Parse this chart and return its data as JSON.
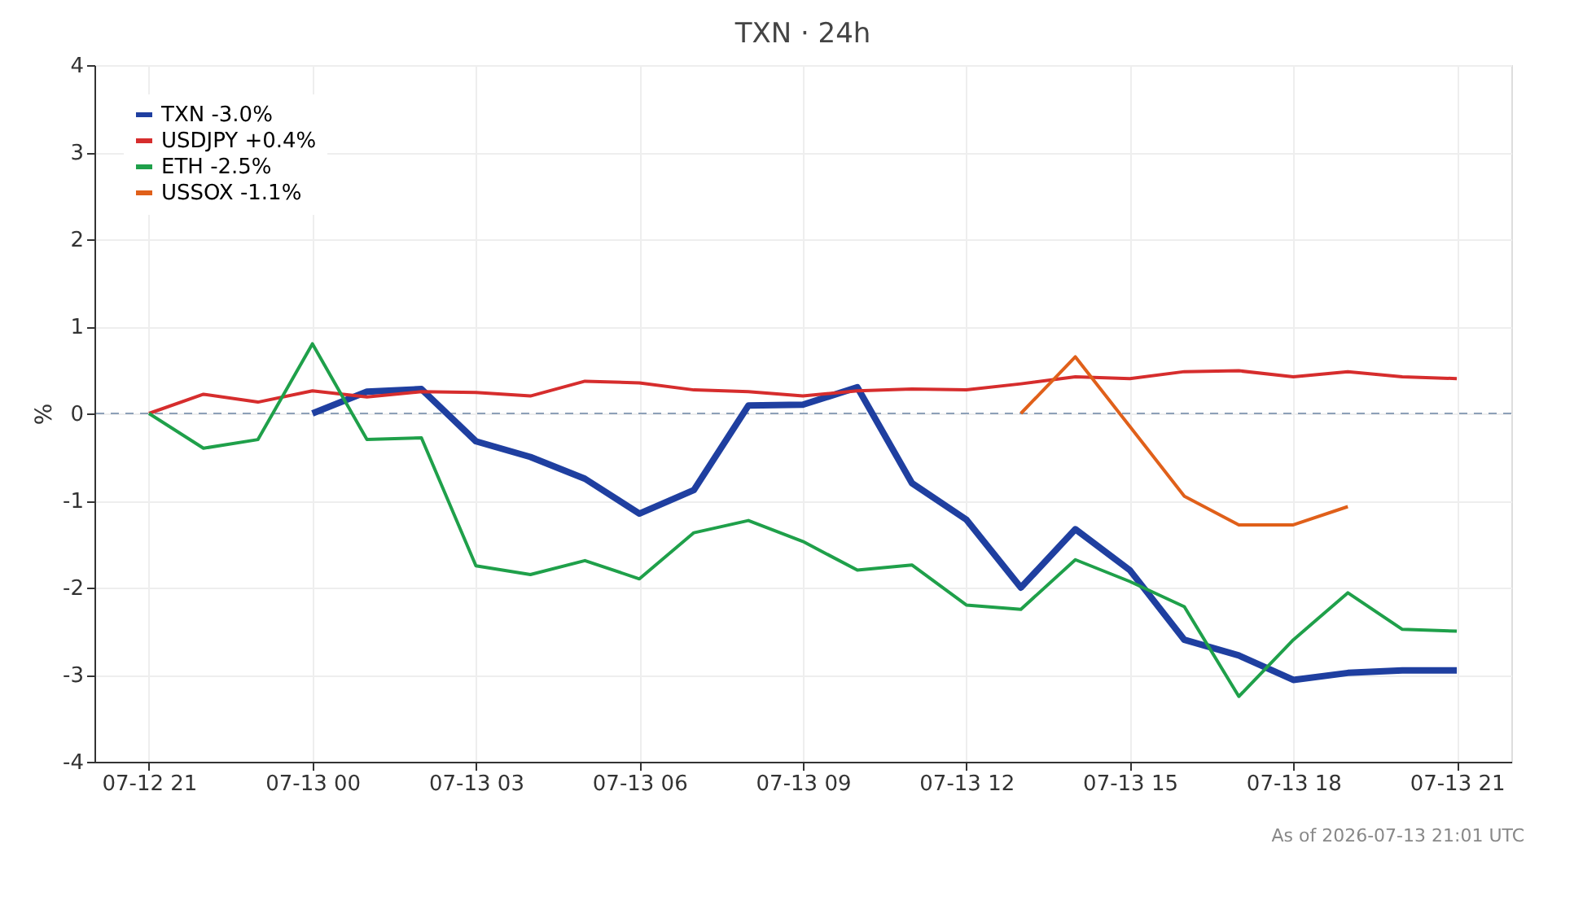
{
  "chart_data": {
    "type": "line",
    "title": "TXN · 24h",
    "ylabel": "%",
    "legend": "top left",
    "grid": true,
    "marker": "none",
    "line_style": "solid",
    "ylim": [
      -4,
      4
    ],
    "yticks": [
      -4,
      -3,
      -2,
      -1,
      0,
      1,
      2,
      3,
      4
    ],
    "xlim": [
      "2026-07-12T20:00",
      "2026-07-13T22:00"
    ],
    "xticks": [
      {
        "value": "2026-07-12T21:00",
        "label": "07-12 21"
      },
      {
        "value": "2026-07-13T00:00",
        "label": "07-13 00"
      },
      {
        "value": "2026-07-13T03:00",
        "label": "07-13 03"
      },
      {
        "value": "2026-07-13T06:00",
        "label": "07-13 06"
      },
      {
        "value": "2026-07-13T09:00",
        "label": "07-13 09"
      },
      {
        "value": "2026-07-13T12:00",
        "label": "07-13 12"
      },
      {
        "value": "2026-07-13T15:00",
        "label": "07-13 15"
      },
      {
        "value": "2026-07-13T18:00",
        "label": "07-13 18"
      },
      {
        "value": "2026-07-13T21:00",
        "label": "07-13 21"
      }
    ],
    "x": [
      "2026-07-12T21:00",
      "2026-07-12T22:00",
      "2026-07-12T23:00",
      "2026-07-13T00:00",
      "2026-07-13T01:00",
      "2026-07-13T02:00",
      "2026-07-13T03:00",
      "2026-07-13T04:00",
      "2026-07-13T05:00",
      "2026-07-13T06:00",
      "2026-07-13T07:00",
      "2026-07-13T08:00",
      "2026-07-13T09:00",
      "2026-07-13T10:00",
      "2026-07-13T11:00",
      "2026-07-13T12:00",
      "2026-07-13T13:00",
      "2026-07-13T14:00",
      "2026-07-13T15:00",
      "2026-07-13T16:00",
      "2026-07-13T17:00",
      "2026-07-13T18:00",
      "2026-07-13T19:00",
      "2026-07-13T20:00",
      "2026-07-13T21:00"
    ],
    "series": [
      {
        "name": "TXN -3.0%",
        "color": "#1f3fa0",
        "values": [
          null,
          null,
          null,
          0,
          0.25,
          0.28,
          -0.32,
          -0.5,
          -0.75,
          -1.15,
          -0.88,
          0.09,
          0.1,
          0.3,
          -0.8,
          -1.22,
          -2.0,
          -1.33,
          -1.8,
          -2.6,
          -2.78,
          -3.06,
          -2.98,
          -2.95,
          -2.95
        ]
      },
      {
        "name": "USDJPY +0.4%",
        "color": "#d62d2d",
        "values": [
          0,
          0.22,
          0.13,
          0.26,
          0.19,
          0.25,
          0.24,
          0.2,
          0.37,
          0.35,
          0.27,
          0.25,
          0.2,
          0.26,
          0.28,
          0.27,
          0.34,
          0.42,
          0.4,
          0.48,
          0.49,
          0.42,
          0.48,
          0.42,
          0.4
        ]
      },
      {
        "name": "ETH -2.5%",
        "color": "#1fa04a",
        "values": [
          0,
          -0.4,
          -0.3,
          0.8,
          -0.3,
          -0.28,
          -1.75,
          -1.85,
          -1.69,
          -1.9,
          -1.37,
          -1.23,
          -1.47,
          -1.8,
          -1.74,
          -2.2,
          -2.25,
          -1.68,
          -1.93,
          -2.22,
          -3.25,
          -2.6,
          -2.06,
          -2.48,
          -2.5
        ]
      },
      {
        "name": "USSOX -1.1%",
        "color": "#e0601a",
        "values": [
          null,
          null,
          null,
          null,
          null,
          null,
          null,
          null,
          null,
          null,
          null,
          null,
          null,
          null,
          null,
          null,
          0,
          0.65,
          -0.15,
          -0.95,
          -1.28,
          -1.28,
          -1.07,
          null,
          null
        ]
      }
    ],
    "ref_lines": [
      {
        "axis": "y",
        "value": 0,
        "color": "#8da0b8",
        "line_style": "dashed"
      }
    ],
    "annotations": [
      "As of 2026-07-13 21:01 UTC"
    ]
  }
}
